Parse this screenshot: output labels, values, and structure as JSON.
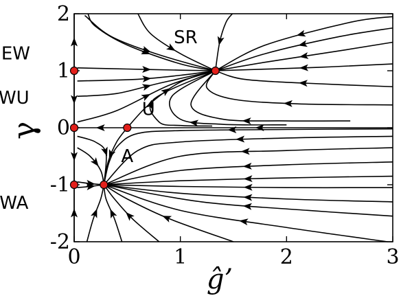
{
  "chart_data": {
    "type": "line",
    "title": "",
    "xlabel": "ĝ’",
    "ylabel": "γ",
    "xlim": [
      0,
      3
    ],
    "ylim": [
      -2,
      2
    ],
    "x_ticks": [
      {
        "value": 0,
        "label": "0"
      },
      {
        "value": 1,
        "label": "1"
      },
      {
        "value": 2,
        "label": "2"
      },
      {
        "value": 3,
        "label": "3"
      }
    ],
    "y_ticks": [
      {
        "value": -2,
        "label": "-2"
      },
      {
        "value": -1,
        "label": "-1"
      },
      {
        "value": 0,
        "label": "0"
      },
      {
        "value": 1,
        "label": "1"
      },
      {
        "value": 2,
        "label": "2"
      }
    ],
    "grid": false,
    "fixed_points": [
      {
        "label": "EW",
        "x": 0,
        "y": 1,
        "label_at": [
          -0.55,
          1.2
        ]
      },
      {
        "label": "EWU",
        "x": 0,
        "y": 0,
        "label_at": [
          -0.62,
          0.42
        ]
      },
      {
        "label": "EWA",
        "x": 0,
        "y": -1,
        "label_at": [
          -0.62,
          -1.42
        ]
      },
      {
        "label": "SR",
        "x": 1.33,
        "y": 1,
        "label_at": [
          1.05,
          1.48
        ]
      },
      {
        "label": "U",
        "x": 0.5,
        "y": 0,
        "label_at": [
          0.7,
          0.22
        ]
      },
      {
        "label": "A",
        "x": 0.28,
        "y": -1,
        "label_at": [
          0.5,
          -0.6
        ]
      }
    ],
    "flow_lines": [
      {
        "points": [
          [
            0.13,
            2.0
          ],
          [
            0.2,
            1.78
          ],
          [
            0.5,
            1.45
          ],
          [
            1.0,
            1.12
          ],
          [
            1.33,
            1.0
          ]
        ],
        "arrows": [
          1
        ]
      },
      {
        "points": [
          [
            0.6,
            2.0
          ],
          [
            0.72,
            1.65
          ],
          [
            1.0,
            1.3
          ],
          [
            1.33,
            1.0
          ]
        ],
        "arrows": [
          1
        ]
      },
      {
        "points": [
          [
            0.1,
            1.97
          ],
          [
            0.35,
            1.6
          ],
          [
            0.8,
            1.28
          ],
          [
            1.33,
            1.0
          ]
        ],
        "arrows": [
          1
        ]
      },
      {
        "points": [
          [
            0.03,
            1.05
          ],
          [
            0.5,
            1.03
          ],
          [
            1.0,
            1.01
          ],
          [
            1.33,
            1.0
          ]
        ],
        "arrows": [
          1
        ]
      },
      {
        "points": [
          [
            0.03,
            0.82
          ],
          [
            0.6,
            0.85
          ],
          [
            1.0,
            0.92
          ],
          [
            1.33,
            1.0
          ]
        ],
        "arrows": [
          1
        ]
      },
      {
        "points": [
          [
            0.03,
            0.55
          ],
          [
            0.4,
            0.6
          ],
          [
            0.8,
            0.78
          ],
          [
            1.33,
            1.0
          ]
        ],
        "arrows": [
          1
        ]
      },
      {
        "points": [
          [
            0.03,
            0.1
          ],
          [
            0.4,
            0.3
          ],
          [
            0.9,
            0.75
          ],
          [
            1.33,
            1.0
          ]
        ],
        "arrows": [
          1
        ]
      },
      {
        "points": [
          [
            0.5,
            0.0
          ],
          [
            0.7,
            0.4
          ],
          [
            1.0,
            0.8
          ],
          [
            1.33,
            1.0
          ]
        ],
        "arrows": [
          1
        ]
      },
      {
        "points": [
          [
            1.49,
            2.0
          ],
          [
            1.43,
            1.85
          ],
          [
            1.37,
            1.5
          ],
          [
            1.33,
            1.0
          ]
        ],
        "arrows": [
          1
        ]
      },
      {
        "points": [
          [
            3.0,
            1.95
          ],
          [
            2.6,
            1.85
          ],
          [
            1.8,
            1.45
          ],
          [
            1.33,
            1.0
          ]
        ],
        "arrows": [
          1
        ]
      },
      {
        "points": [
          [
            3.0,
            1.75
          ],
          [
            2.5,
            1.6
          ],
          [
            1.8,
            1.3
          ],
          [
            1.33,
            1.0
          ]
        ],
        "arrows": [
          1
        ]
      },
      {
        "points": [
          [
            3.0,
            1.5
          ],
          [
            2.5,
            1.35
          ],
          [
            1.8,
            1.15
          ],
          [
            1.33,
            1.0
          ]
        ],
        "arrows": [
          1
        ]
      },
      {
        "points": [
          [
            3.0,
            1.12
          ],
          [
            2.3,
            1.06
          ],
          [
            1.33,
            1.0
          ]
        ],
        "arrows": [
          1
        ]
      },
      {
        "points": [
          [
            3.0,
            0.72
          ],
          [
            2.2,
            0.78
          ],
          [
            1.6,
            0.85
          ],
          [
            1.33,
            1.0
          ]
        ],
        "arrows": [
          1
        ]
      },
      {
        "points": [
          [
            3.0,
            0.4
          ],
          [
            2.1,
            0.42
          ],
          [
            1.5,
            0.5
          ],
          [
            1.25,
            0.7
          ],
          [
            1.33,
            1.0
          ]
        ],
        "arrows": [
          1
        ]
      },
      {
        "points": [
          [
            2.6,
            0.12
          ],
          [
            2.0,
            0.12
          ],
          [
            1.4,
            0.15
          ],
          [
            1.1,
            0.4
          ],
          [
            1.33,
            1.0
          ]
        ],
        "arrows": [
          1
        ]
      },
      {
        "points": [
          [
            2.0,
            0.05
          ],
          [
            1.4,
            0.06
          ],
          [
            1.0,
            0.15
          ],
          [
            0.92,
            0.55
          ],
          [
            1.33,
            1.0
          ]
        ],
        "arrows": [
          1
        ]
      },
      {
        "points": [
          [
            1.3,
            0.03
          ],
          [
            1.0,
            0.04
          ],
          [
            0.8,
            0.1
          ],
          [
            0.75,
            0.5
          ],
          [
            1.33,
            1.0
          ]
        ],
        "arrows": [
          1
        ]
      },
      {
        "points": [
          [
            3.0,
            0.0
          ],
          [
            2.0,
            0.0
          ],
          [
            1.0,
            0.0
          ],
          [
            0.5,
            0.0
          ]
        ],
        "arrows": [
          0
        ]
      },
      {
        "points": [
          [
            0.5,
            0.0
          ],
          [
            0.25,
            0.0
          ],
          [
            0.0,
            0.0
          ]
        ],
        "arrows": [
          0
        ]
      },
      {
        "points": [
          [
            3.0,
            -0.02
          ],
          [
            2.0,
            -0.03
          ],
          [
            1.0,
            -0.05
          ],
          [
            0.6,
            -0.1
          ],
          [
            0.42,
            -0.3
          ],
          [
            0.33,
            -0.6
          ],
          [
            0.28,
            -1.0
          ]
        ],
        "arrows": [
          1
        ]
      },
      {
        "points": [
          [
            3.0,
            -0.15
          ],
          [
            2.0,
            -0.18
          ],
          [
            1.0,
            -0.25
          ],
          [
            0.6,
            -0.4
          ],
          [
            0.28,
            -1.0
          ]
        ],
        "arrows": [
          1
        ]
      },
      {
        "points": [
          [
            3.0,
            -0.35
          ],
          [
            2.0,
            -0.4
          ],
          [
            1.0,
            -0.5
          ],
          [
            0.28,
            -1.0
          ]
        ],
        "arrows": [
          1
        ]
      },
      {
        "points": [
          [
            3.0,
            -0.6
          ],
          [
            2.0,
            -0.65
          ],
          [
            1.0,
            -0.75
          ],
          [
            0.28,
            -1.0
          ]
        ],
        "arrows": [
          1
        ]
      },
      {
        "points": [
          [
            3.0,
            -0.85
          ],
          [
            2.0,
            -0.88
          ],
          [
            1.0,
            -0.93
          ],
          [
            0.28,
            -1.0
          ]
        ],
        "arrows": [
          1
        ]
      },
      {
        "points": [
          [
            3.0,
            -1.05
          ],
          [
            2.0,
            -1.05
          ],
          [
            1.0,
            -1.03
          ],
          [
            0.28,
            -1.0
          ]
        ],
        "arrows": [
          1
        ]
      },
      {
        "points": [
          [
            3.0,
            -1.3
          ],
          [
            2.0,
            -1.25
          ],
          [
            1.0,
            -1.15
          ],
          [
            0.28,
            -1.0
          ]
        ],
        "arrows": [
          1
        ]
      },
      {
        "points": [
          [
            3.0,
            -1.55
          ],
          [
            2.2,
            -1.45
          ],
          [
            1.2,
            -1.3
          ],
          [
            0.28,
            -1.0
          ]
        ],
        "arrows": [
          1
        ]
      },
      {
        "points": [
          [
            2.95,
            -2.0
          ],
          [
            2.0,
            -1.75
          ],
          [
            1.0,
            -1.45
          ],
          [
            0.28,
            -1.0
          ]
        ],
        "arrows": [
          1
        ]
      },
      {
        "points": [
          [
            1.5,
            -2.0
          ],
          [
            0.9,
            -1.6
          ],
          [
            0.5,
            -1.25
          ],
          [
            0.28,
            -1.0
          ]
        ],
        "arrows": [
          1
        ]
      },
      {
        "points": [
          [
            0.8,
            -2.0
          ],
          [
            0.55,
            -1.6
          ],
          [
            0.38,
            -1.25
          ],
          [
            0.28,
            -1.0
          ]
        ],
        "arrows": [
          1
        ]
      },
      {
        "points": [
          [
            0.45,
            -2.0
          ],
          [
            0.38,
            -1.6
          ],
          [
            0.3,
            -1.25
          ],
          [
            0.28,
            -1.0
          ]
        ],
        "arrows": [
          1
        ]
      },
      {
        "points": [
          [
            0.12,
            -2.0
          ],
          [
            0.18,
            -1.6
          ],
          [
            0.25,
            -1.25
          ],
          [
            0.28,
            -1.0
          ]
        ],
        "arrows": [
          1
        ]
      },
      {
        "points": [
          [
            0.03,
            -1.05
          ],
          [
            0.15,
            -1.03
          ],
          [
            0.28,
            -1.0
          ]
        ],
        "arrows": [
          1
        ]
      },
      {
        "points": [
          [
            0.03,
            -0.95
          ],
          [
            0.15,
            -0.98
          ],
          [
            0.28,
            -1.0
          ]
        ],
        "arrows": [
          1
        ]
      },
      {
        "points": [
          [
            0.03,
            -0.35
          ],
          [
            0.15,
            -0.5
          ],
          [
            0.25,
            -0.75
          ],
          [
            0.28,
            -1.0
          ]
        ],
        "arrows": [
          1
        ]
      },
      {
        "points": [
          [
            0.03,
            -0.15
          ],
          [
            0.2,
            -0.25
          ],
          [
            0.3,
            -0.45
          ],
          [
            0.28,
            -1.0
          ]
        ],
        "arrows": [
          1
        ]
      },
      {
        "points": [
          [
            0.5,
            0.0
          ],
          [
            0.4,
            -0.25
          ],
          [
            0.32,
            -0.6
          ],
          [
            0.28,
            -1.0
          ]
        ],
        "arrows": [
          1
        ]
      },
      {
        "points": [
          [
            0.0,
            1.0
          ],
          [
            0.0,
            0.5
          ],
          [
            0.0,
            0.0
          ]
        ],
        "arrows": [
          1
        ]
      },
      {
        "points": [
          [
            0.0,
            1.0
          ],
          [
            0.0,
            1.5
          ],
          [
            0.0,
            2.0
          ]
        ],
        "arrows": [
          1
        ]
      },
      {
        "points": [
          [
            0.0,
            0.0
          ],
          [
            0.0,
            -0.5
          ],
          [
            0.0,
            -1.0
          ]
        ],
        "arrows": [
          1
        ]
      },
      {
        "points": [
          [
            0.0,
            -2.0
          ],
          [
            0.0,
            -1.5
          ],
          [
            0.0,
            -1.0
          ]
        ],
        "arrows": [
          1
        ]
      }
    ]
  }
}
